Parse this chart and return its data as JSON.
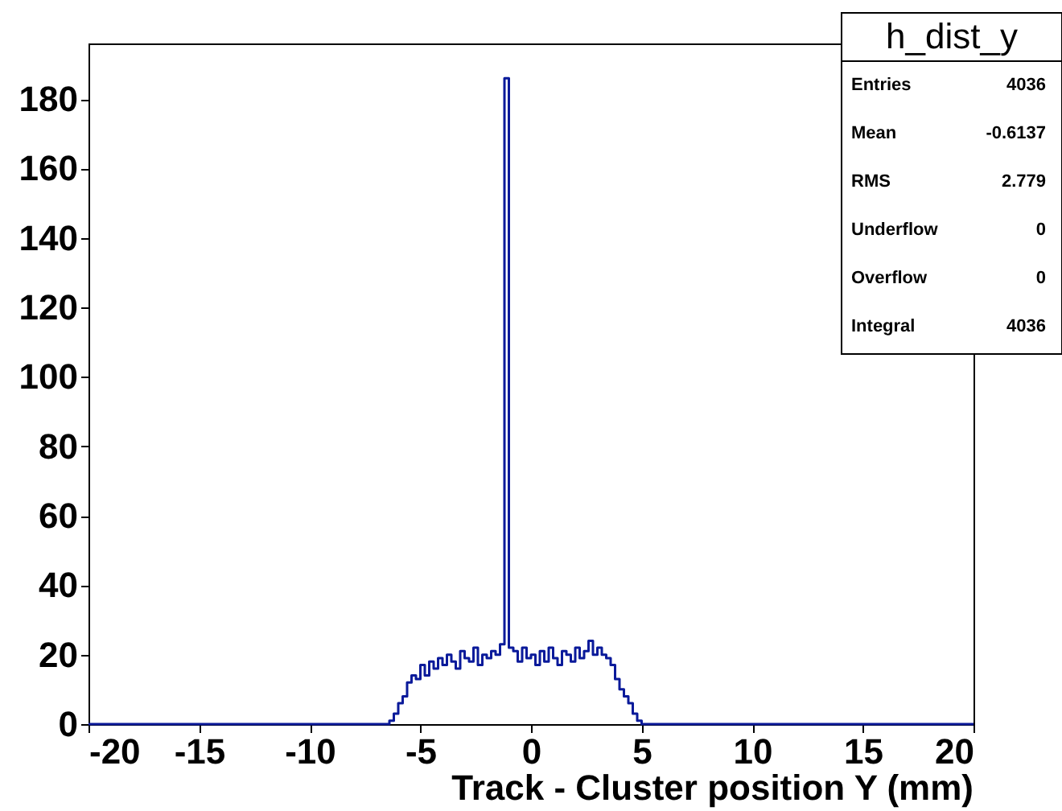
{
  "chart_data": {
    "type": "histogram",
    "xlabel": "Track - Cluster position Y (mm)",
    "color": "#0a1a9a",
    "bins": [
      -20.0,
      -19.8,
      -19.6,
      -19.4,
      -19.2,
      -19.0,
      -18.8,
      -18.6,
      -18.4,
      -18.2,
      -18.0,
      -17.8,
      -17.6,
      -17.4,
      -17.2,
      -17.0,
      -16.8,
      -16.6,
      -16.4,
      -16.2,
      -16.0,
      -15.8,
      -15.6,
      -15.4,
      -15.2,
      -15.0,
      -14.8,
      -14.6,
      -14.4,
      -14.2,
      -14.0,
      -13.8,
      -13.6,
      -13.4,
      -13.2,
      -13.0,
      -12.8,
      -12.6,
      -12.4,
      -12.2,
      -12.0,
      -11.8,
      -11.6,
      -11.4,
      -11.2,
      -11.0,
      -10.8,
      -10.6,
      -10.4,
      -10.2,
      -10.0,
      -9.8,
      -9.6,
      -9.4,
      -9.2,
      -9.0,
      -8.8,
      -8.6,
      -8.4,
      -8.2,
      -8.0,
      -7.8,
      -7.6,
      -7.4,
      -7.2,
      -7.0,
      -6.8,
      -6.6,
      -6.4,
      -6.2,
      -6.0,
      -5.8,
      -5.6,
      -5.4,
      -5.2,
      -5.0,
      -4.8,
      -4.6,
      -4.4,
      -4.2,
      -4.0,
      -3.8,
      -3.6,
      -3.4,
      -3.2,
      -3.0,
      -2.8,
      -2.6,
      -2.4,
      -2.2,
      -2.0,
      -1.8,
      -1.6,
      -1.4,
      -1.2,
      -1.0,
      -0.8,
      -0.6,
      -0.4,
      -0.2,
      0.0,
      0.2,
      0.4,
      0.6,
      0.8,
      1.0,
      1.2,
      1.4,
      1.6,
      1.8,
      2.0,
      2.2,
      2.4,
      2.6,
      2.8,
      3.0,
      3.2,
      3.4,
      3.6,
      3.8,
      4.0,
      4.2,
      4.4,
      4.6,
      4.8,
      5.0,
      5.2,
      5.4,
      5.6,
      5.8,
      6.0,
      6.2,
      6.4,
      6.6,
      6.8,
      7.0,
      7.2,
      7.4,
      7.6,
      7.8,
      8.0,
      8.2,
      8.4,
      8.6,
      8.8,
      9.0,
      9.2,
      9.4,
      9.6,
      9.8,
      10.0,
      10.2,
      10.4,
      10.6,
      10.8,
      11.0,
      11.2,
      11.4,
      11.6,
      11.8,
      12.0,
      12.2,
      12.4,
      12.6,
      12.8,
      13.0,
      13.2,
      13.4,
      13.6,
      13.8,
      14.0,
      14.2,
      14.4,
      14.6,
      14.8,
      15.0,
      15.2,
      15.4,
      15.6,
      15.8,
      16.0,
      16.2,
      16.4,
      16.6,
      16.8,
      17.0,
      17.2,
      17.4,
      17.6,
      17.8,
      18.0,
      18.2,
      18.4,
      18.6,
      18.8,
      19.0,
      19.2,
      19.4,
      19.6,
      19.8,
      20.0
    ],
    "values": [
      0,
      0,
      0,
      0,
      0,
      0,
      0,
      0,
      0,
      0,
      0,
      0,
      0,
      0,
      0,
      0,
      0,
      0,
      0,
      0,
      0,
      0,
      0,
      0,
      0,
      0,
      0,
      0,
      0,
      0,
      0,
      0,
      0,
      0,
      0,
      0,
      0,
      0,
      0,
      0,
      0,
      0,
      0,
      0,
      0,
      0,
      0,
      0,
      0,
      0,
      0,
      0,
      0,
      0,
      0,
      0,
      0,
      0,
      0,
      0,
      0,
      0,
      0,
      0,
      0,
      0,
      0,
      0,
      1,
      3,
      6,
      8,
      12,
      14,
      13,
      17,
      14,
      18,
      16,
      19,
      17,
      20,
      18,
      16,
      21,
      19,
      18,
      22,
      17,
      20,
      19,
      21,
      20,
      23,
      186,
      22,
      21,
      18,
      22,
      19,
      20,
      17,
      21,
      18,
      22,
      19,
      17,
      21,
      20,
      18,
      22,
      19,
      21,
      24,
      20,
      22,
      20,
      19,
      17,
      13,
      10,
      8,
      6,
      3,
      1,
      0,
      0,
      0,
      0,
      0,
      0,
      0,
      0,
      0,
      0,
      0,
      0,
      0,
      0,
      0,
      0,
      0,
      0,
      0,
      0,
      0,
      0,
      0,
      0,
      0,
      0,
      0,
      0,
      0,
      0,
      0,
      0,
      0,
      0,
      0,
      0,
      0,
      0,
      0,
      0,
      0,
      0,
      0,
      0,
      0,
      0,
      0,
      0,
      0,
      0,
      0,
      0,
      0,
      0,
      0,
      0,
      0,
      0,
      0,
      0,
      0,
      0,
      0,
      0,
      0,
      0,
      0,
      0,
      0,
      0,
      0,
      0,
      0,
      0,
      0
    ],
    "xlim": [
      -20,
      20
    ],
    "xticks": [
      -20,
      -15,
      -10,
      -5,
      0,
      5,
      10,
      15,
      20
    ],
    "ylim": [
      0,
      196
    ],
    "yticks": [
      0,
      20,
      40,
      60,
      80,
      100,
      120,
      140,
      160,
      180
    ],
    "grid": false,
    "annotations": [
      "h_dist_y",
      "Entries",
      "4036",
      "Mean",
      "-0.6137",
      "RMS",
      "2.779",
      "Underflow",
      "0",
      "Overflow",
      "0",
      "Integral",
      "4036"
    ]
  }
}
